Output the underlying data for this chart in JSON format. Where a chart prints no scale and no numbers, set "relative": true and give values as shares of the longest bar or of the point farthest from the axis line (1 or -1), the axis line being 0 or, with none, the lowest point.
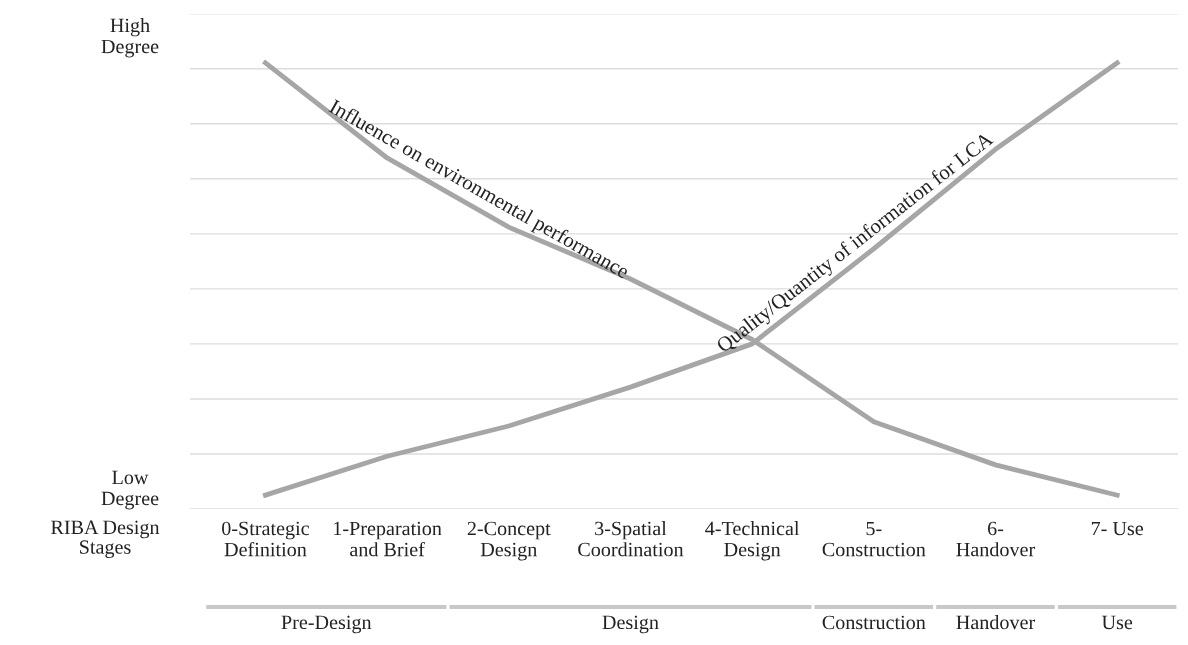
{
  "chart_data": {
    "type": "line",
    "relative": true,
    "grid": "y",
    "marker": "none",
    "line_style": "solid",
    "categories": [
      "0-Strategic\nDefinition",
      "1-Preparation\nand Brief",
      "2-Concept\nDesign",
      "3-Spatial\nCoordination",
      "4-Technical\nDesign",
      "5-\nConstruction",
      "6-\nHandover",
      "7- Use"
    ],
    "series": [
      {
        "name": "Influence on environmental performance",
        "color": "#a6a6a6",
        "values": [
          1,
          0.78,
          0.62,
          0.5,
          0.36,
          0.17,
          0.07,
          0
        ]
      },
      {
        "name": "Quality/Quantity of information for LCA",
        "color": "#a6a6a6",
        "values": [
          0,
          0.09,
          0.16,
          0.25,
          0.35,
          0.57,
          0.8,
          1
        ]
      }
    ],
    "xlabel": "RIBA Design Stages",
    "annotations": [
      "High\nDegree",
      "Low\nDegree",
      "Pre-Design",
      "Design",
      "Construction",
      "Handover",
      "Use"
    ]
  }
}
